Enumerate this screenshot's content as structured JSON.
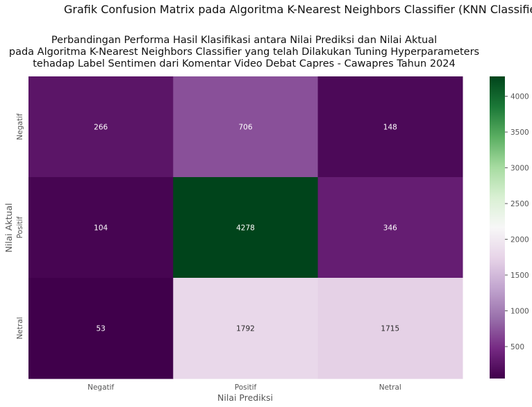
{
  "chart_data": {
    "type": "heatmap",
    "suptitle": "Grafik Confusion Matrix pada Algoritma K-Nearest Neighbors Classifier (KNN Classifier)",
    "title_lines": [
      "Perbandingan Performa Hasil Klasifikasi antara Nilai Prediksi dan Nilai Aktual",
      "pada Algoritma K-Nearest Neighbors Classifier yang telah Dilakukan Tuning Hyperparameters",
      "tehadap Label Sentimen dari Komentar Video Debat Capres -  Cawapres Tahun 2024"
    ],
    "xlabel": "Nilai Prediksi",
    "ylabel": "Nilai Aktual",
    "x_categories": [
      "Negatif",
      "Positif",
      "Netral"
    ],
    "y_categories": [
      "Negatif",
      "Positif",
      "Netral"
    ],
    "values": [
      [
        266,
        706,
        148
      ],
      [
        104,
        4278,
        346
      ],
      [
        53,
        1792,
        1715
      ]
    ],
    "colorscale": "PRGn",
    "colorbar": {
      "vmin": 53,
      "vmax": 4278,
      "ticks": [
        500,
        1000,
        1500,
        2000,
        2500,
        3000,
        3500,
        4000
      ]
    },
    "grid": false
  }
}
